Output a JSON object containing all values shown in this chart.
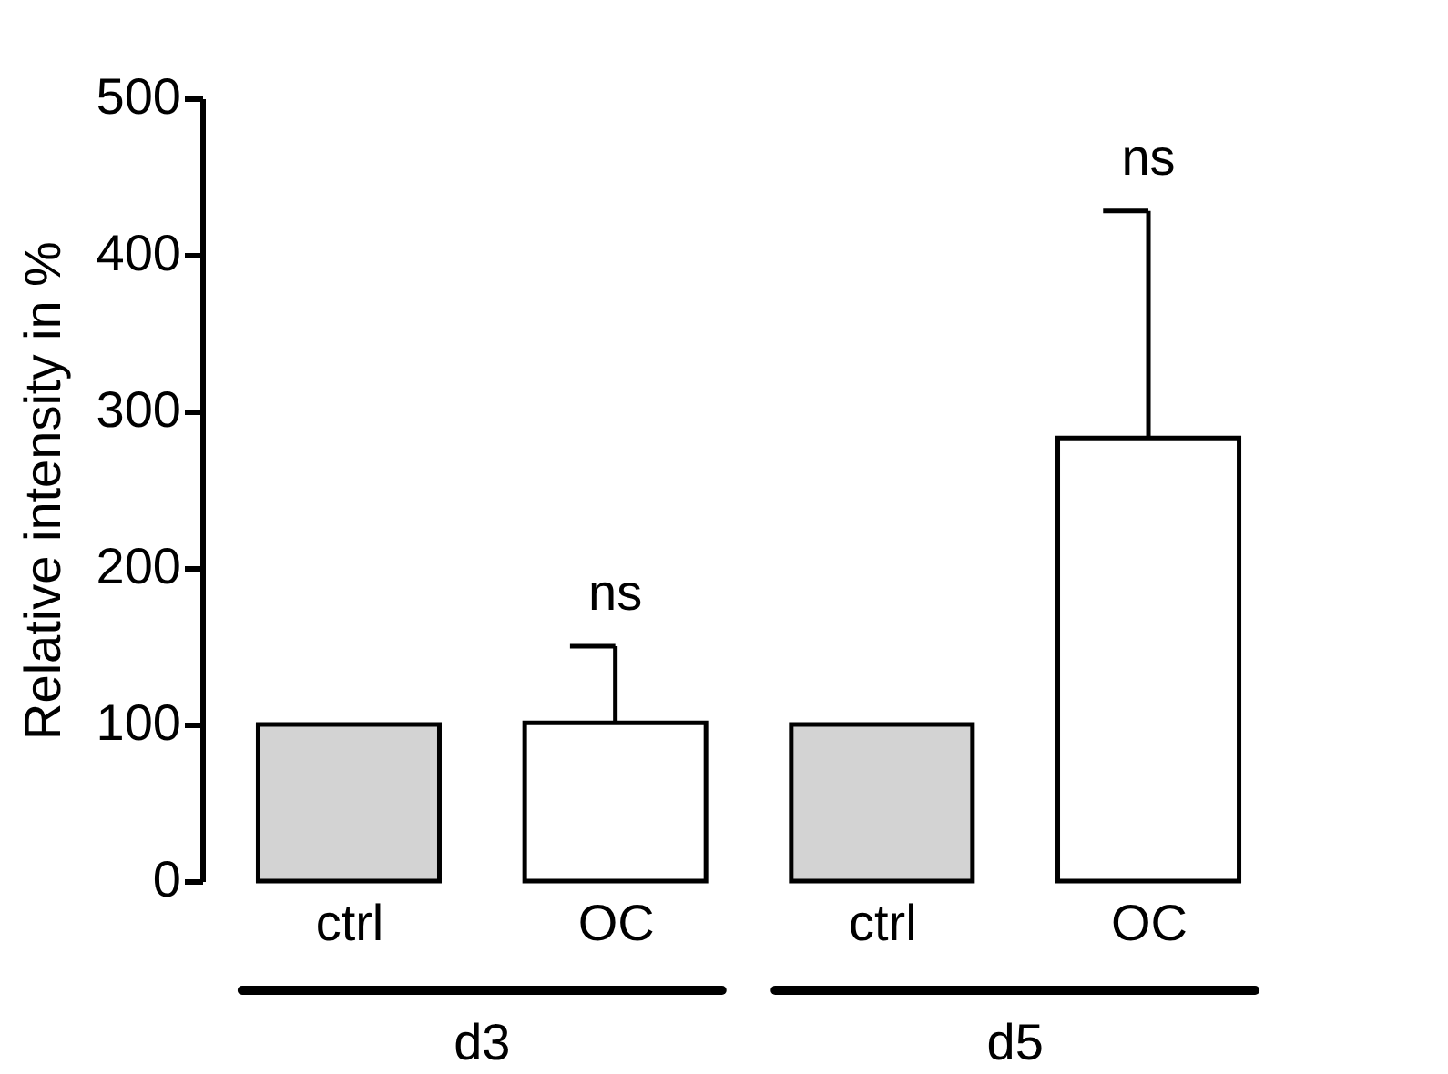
{
  "chart_data": {
    "type": "bar",
    "ylabel": "Relative intensity in %",
    "categories": [
      "ctrl",
      "OC",
      "ctrl",
      "OC"
    ],
    "values": [
      100,
      101,
      100,
      283
    ],
    "colors": [
      "#d3d3d3",
      "#ffffff",
      "#d3d3d3",
      "#ffffff"
    ],
    "errors": [
      null,
      [
        101,
        150
      ],
      null,
      [
        283,
        428
      ]
    ],
    "ylim": [
      0,
      500
    ],
    "yticks": [
      0,
      100,
      200,
      300,
      400,
      500
    ],
    "annotations": [
      "ns",
      "ns",
      "d3",
      "d5"
    ]
  }
}
